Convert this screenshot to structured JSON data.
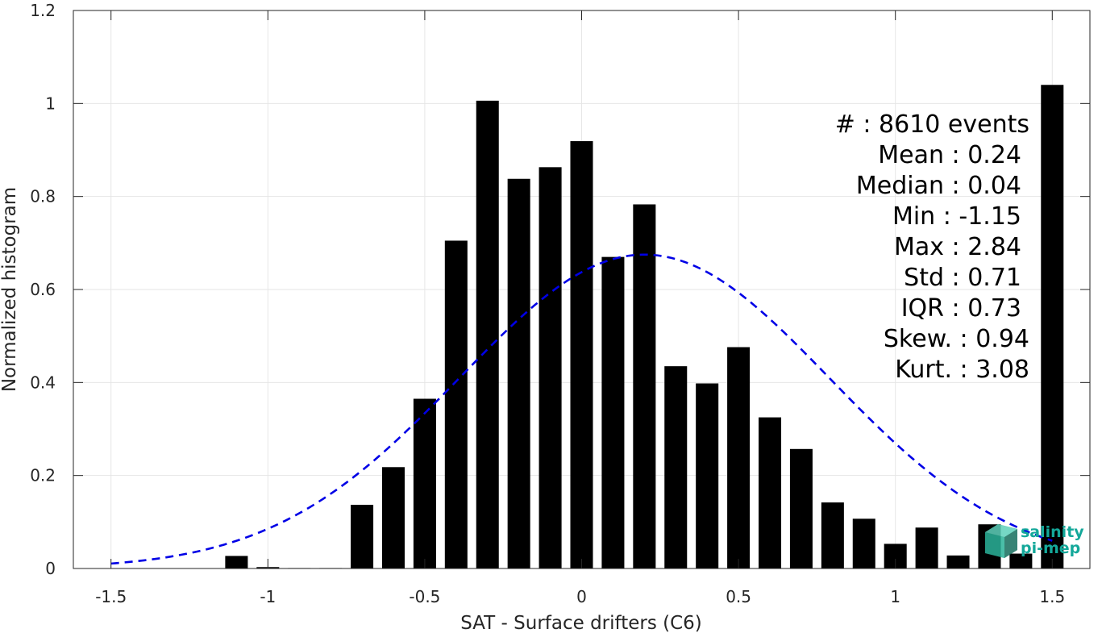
{
  "chart_data": {
    "type": "bar",
    "xlabel": "SAT - Surface drifters (C6)",
    "ylabel": "Normalized histogram",
    "xlim": [
      -1.62,
      1.62
    ],
    "ylim": [
      0,
      1.2
    ],
    "xticks": [
      -1.5,
      -1,
      -0.5,
      0,
      0.5,
      1,
      1.5
    ],
    "xtick_labels": [
      "-1.5",
      "-1",
      "-0.5",
      "0",
      "0.5",
      "1",
      "1.5"
    ],
    "yticks": [
      0,
      0.2,
      0.4,
      0.6,
      0.8,
      1,
      1.2
    ],
    "ytick_labels": [
      "0",
      "0.2",
      "0.4",
      "0.6",
      "0.8",
      "1",
      "1.2"
    ],
    "grid": true,
    "bin_width": 0.1,
    "bars": {
      "x": [
        -1.1,
        -1.0,
        -0.9,
        -0.8,
        -0.7,
        -0.6,
        -0.5,
        -0.4,
        -0.3,
        -0.2,
        -0.1,
        0.0,
        0.1,
        0.2,
        0.3,
        0.4,
        0.5,
        0.6,
        0.7,
        0.8,
        0.9,
        1.0,
        1.1,
        1.2,
        1.3,
        1.4,
        1.5
      ],
      "values": [
        0.027,
        0.003,
        0.001,
        0.001,
        0.137,
        0.218,
        0.365,
        0.705,
        1.006,
        0.838,
        0.863,
        0.919,
        0.67,
        0.783,
        0.435,
        0.398,
        0.476,
        0.325,
        0.257,
        0.142,
        0.107,
        0.053,
        0.088,
        0.028,
        0.095,
        0.032,
        1.04
      ],
      "color": "#000000"
    },
    "fit": {
      "type": "gaussian",
      "mean": 0.2,
      "std": 0.59,
      "peak": 0.675,
      "x_range": [
        -1.5,
        1.5
      ],
      "color": "#0000e6",
      "style": "dashed"
    },
    "annotations": [
      "#  : 8610 events",
      "Mean : 0.24",
      "Median : 0.04",
      "Min : -1.15",
      "Max : 2.84",
      "Std : 0.71",
      "IQR : 0.73",
      "Skew. : 0.94",
      "Kurt. : 3.08"
    ]
  },
  "logo": {
    "line1": "salinity",
    "line2": "pi-mep",
    "icon": "salinity-cube-logo-icon",
    "color": "#14a89a"
  }
}
